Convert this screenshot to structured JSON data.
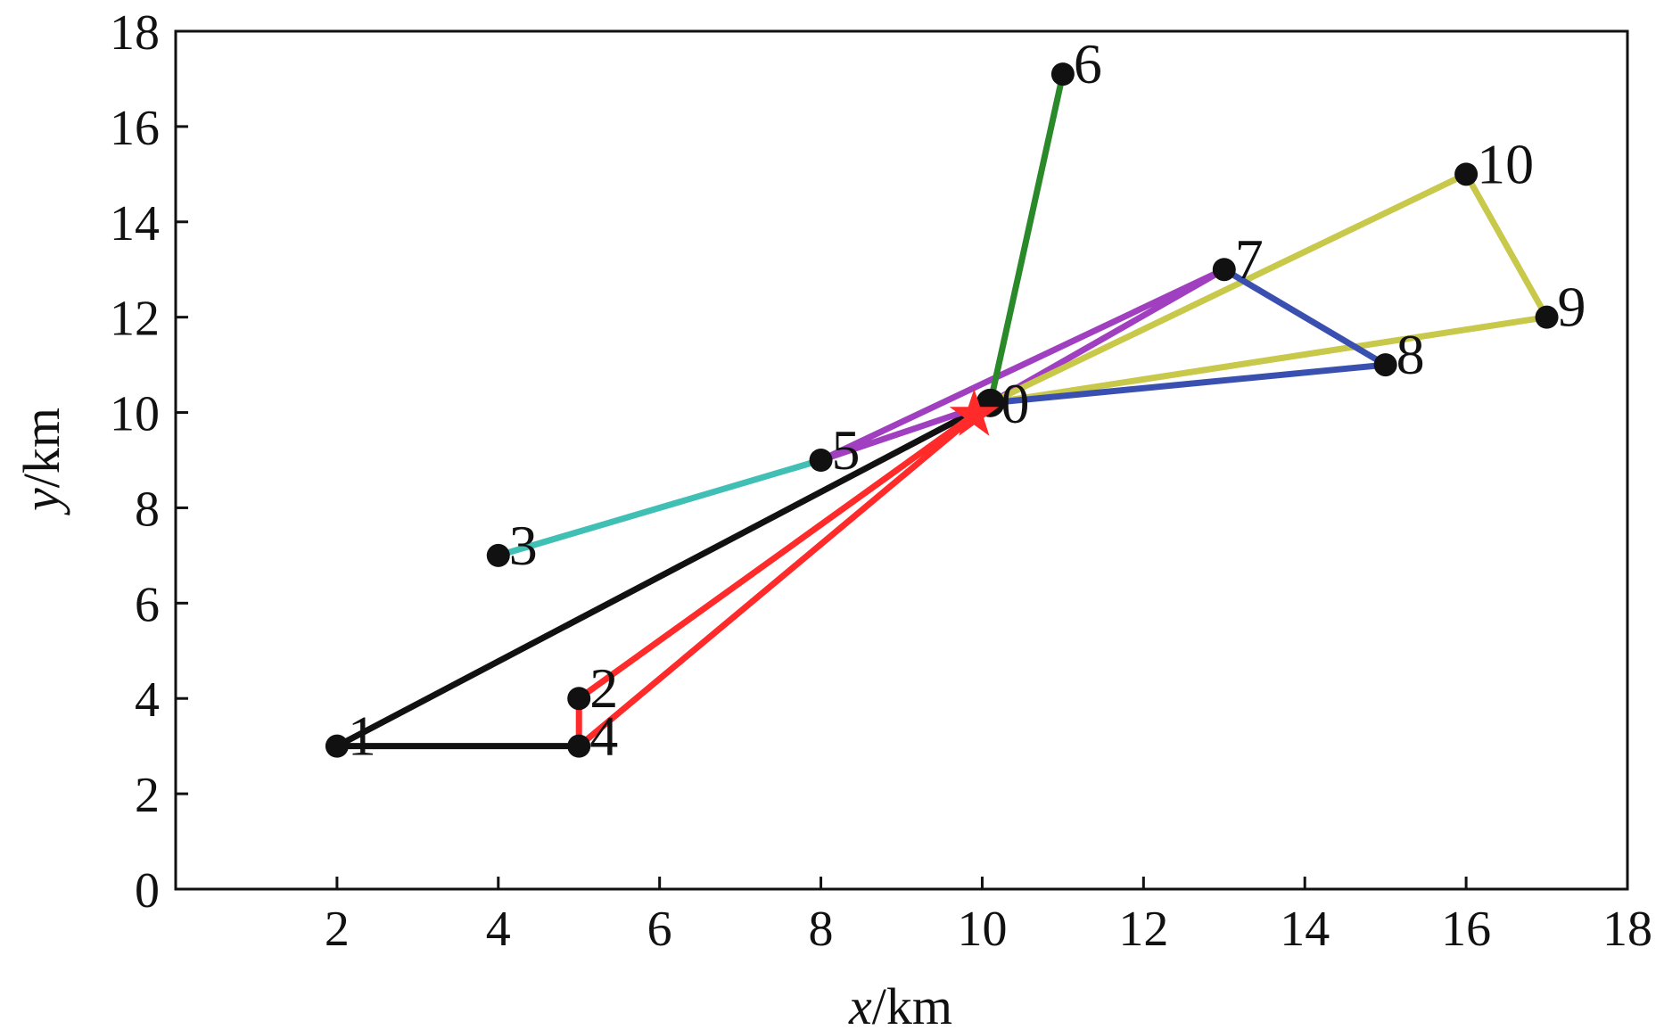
{
  "chart_data": {
    "type": "line",
    "xlabel": {
      "var": "x",
      "unit": "/km"
    },
    "ylabel": {
      "var": "y",
      "unit": "/km"
    },
    "xlim": [
      0,
      18
    ],
    "ylim": [
      0,
      18
    ],
    "x_ticks": [
      2,
      4,
      6,
      8,
      10,
      12,
      14,
      16,
      18
    ],
    "y_ticks": [
      0,
      2,
      4,
      6,
      8,
      10,
      12,
      14,
      16,
      18
    ],
    "grid": false,
    "nodes": [
      {
        "id": "0",
        "x": 10.1,
        "y": 10.2
      },
      {
        "id": "1",
        "x": 2,
        "y": 3
      },
      {
        "id": "2",
        "x": 5,
        "y": 4
      },
      {
        "id": "3",
        "x": 4,
        "y": 7
      },
      {
        "id": "4",
        "x": 5,
        "y": 3
      },
      {
        "id": "5",
        "x": 8,
        "y": 9
      },
      {
        "id": "6",
        "x": 11,
        "y": 17.1
      },
      {
        "id": "7",
        "x": 13,
        "y": 13
      },
      {
        "id": "8",
        "x": 15,
        "y": 11
      },
      {
        "id": "9",
        "x": 17,
        "y": 12
      },
      {
        "id": "10",
        "x": 16,
        "y": 15
      }
    ],
    "depot_marker": {
      "x": 9.9,
      "y": 9.95,
      "color": "#ff2a2a"
    },
    "routes": [
      {
        "color": "#111111",
        "path": [
          [
            10.1,
            10.2
          ],
          [
            2,
            3
          ],
          [
            5,
            3
          ]
        ]
      },
      {
        "color": "#ff2a2a",
        "path": [
          [
            5,
            3
          ],
          [
            5,
            4
          ],
          [
            10.1,
            10.2
          ],
          [
            5,
            3
          ]
        ]
      },
      {
        "color": "#40c0b5",
        "path": [
          [
            4,
            7
          ],
          [
            8,
            9
          ]
        ]
      },
      {
        "color": "#a040c0",
        "path": [
          [
            8,
            9
          ],
          [
            13,
            13
          ],
          [
            10.1,
            10.2
          ],
          [
            8,
            9
          ]
        ]
      },
      {
        "color": "#2a8a2a",
        "path": [
          [
            10.1,
            10.2
          ],
          [
            11,
            17.1
          ]
        ]
      },
      {
        "color": "#c8c84a",
        "path": [
          [
            10.1,
            10.2
          ],
          [
            16,
            15
          ],
          [
            17,
            12
          ],
          [
            10.1,
            10.2
          ]
        ]
      },
      {
        "color": "#3a50b0",
        "path": [
          [
            13,
            13
          ],
          [
            15,
            11
          ],
          [
            10.1,
            10.2
          ]
        ]
      }
    ]
  }
}
